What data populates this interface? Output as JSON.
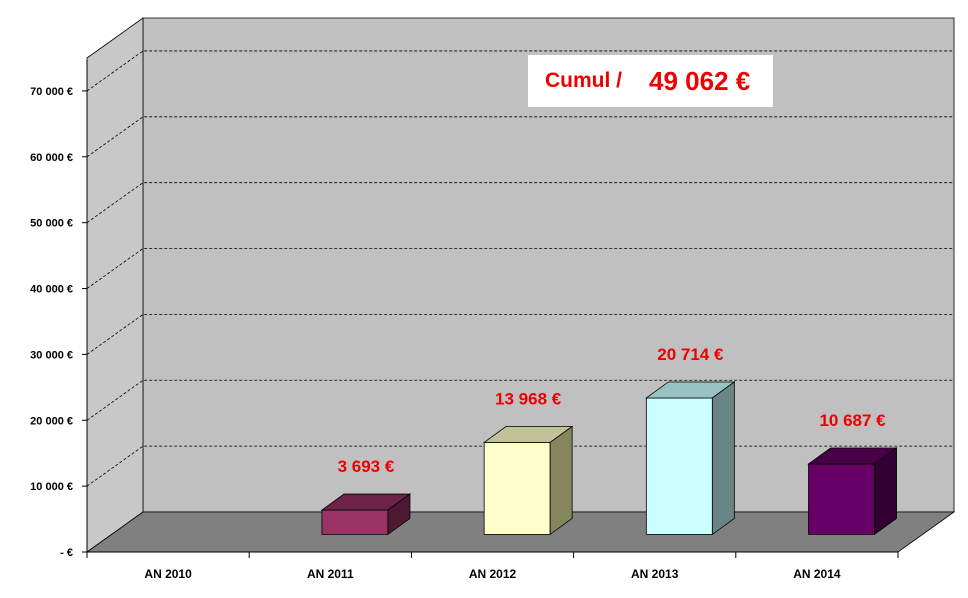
{
  "chart_data": {
    "type": "bar",
    "categories": [
      "AN 2010",
      "AN 2011",
      "AN 2012",
      "AN 2013",
      "AN 2014"
    ],
    "values": [
      0,
      3693,
      13968,
      20714,
      10687
    ],
    "value_labels": [
      "",
      "3 693 €",
      "13 968 €",
      "20 714 €",
      "10 687 €"
    ],
    "ylim": [
      0,
      75000
    ],
    "y_ticks": [
      0,
      10000,
      20000,
      30000,
      40000,
      50000,
      60000,
      70000
    ],
    "y_tick_labels": [
      "-   €",
      "10 000 €",
      "20 000 €",
      "30 000 €",
      "40 000 €",
      "50 000 €",
      "60 000 €",
      "70 000 €"
    ],
    "grid_values": [
      10000,
      20000,
      30000,
      40000,
      50000,
      60000,
      70000
    ],
    "grid": true,
    "three_d": true,
    "title": "",
    "xlabel": "",
    "ylabel": "",
    "legend": "none",
    "colors": {
      "wall": "#c0c0c0",
      "side_wall": "#c8c8c8",
      "floor": "#808080",
      "data_label": "#ee0000",
      "bars": [
        {
          "front": "#993366",
          "top": "#6b2347",
          "side": "#4d1933"
        },
        {
          "front": "#993366",
          "top": "#6b2347",
          "side": "#4d1933"
        },
        {
          "front": "#ffffcc",
          "top": "#c2c299",
          "side": "#85855e"
        },
        {
          "front": "#ccffff",
          "top": "#99c2c2",
          "side": "#6a8585"
        },
        {
          "front": "#660066",
          "top": "#470047",
          "side": "#330033"
        }
      ]
    }
  },
  "cumul": {
    "label": "Cumul /",
    "value": "49 062 €"
  }
}
